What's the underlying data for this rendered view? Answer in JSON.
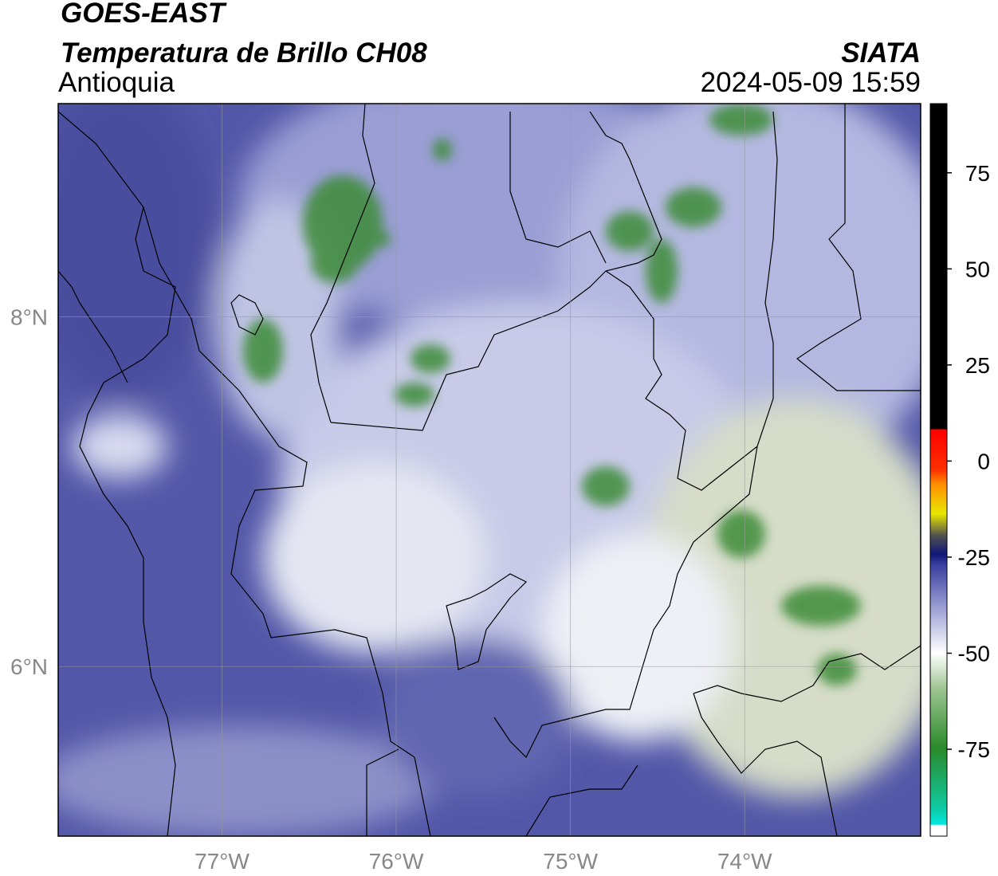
{
  "header": {
    "satellite": "GOES-EAST",
    "product": "Temperatura de Brillo CH08",
    "region": "Antioquia",
    "source": "SIATA",
    "datetime": "2024-05-09 15:59"
  },
  "map": {
    "xlim": [
      -77.94,
      -72.99
    ],
    "ylim": [
      5.03,
      9.22
    ],
    "xticks": [
      {
        "value": -77,
        "label": "77°W"
      },
      {
        "value": -76,
        "label": "76°W"
      },
      {
        "value": -75,
        "label": "75°W"
      },
      {
        "value": -74,
        "label": "74°W"
      }
    ],
    "yticks": [
      {
        "value": 6,
        "label": "6°N"
      },
      {
        "value": 8,
        "label": "8°N"
      }
    ],
    "grid": true
  },
  "colorbar": {
    "lim": [
      -97.6,
      93
    ],
    "ticks": [
      -75,
      -50,
      -25,
      0,
      25,
      50,
      75
    ]
  }
}
